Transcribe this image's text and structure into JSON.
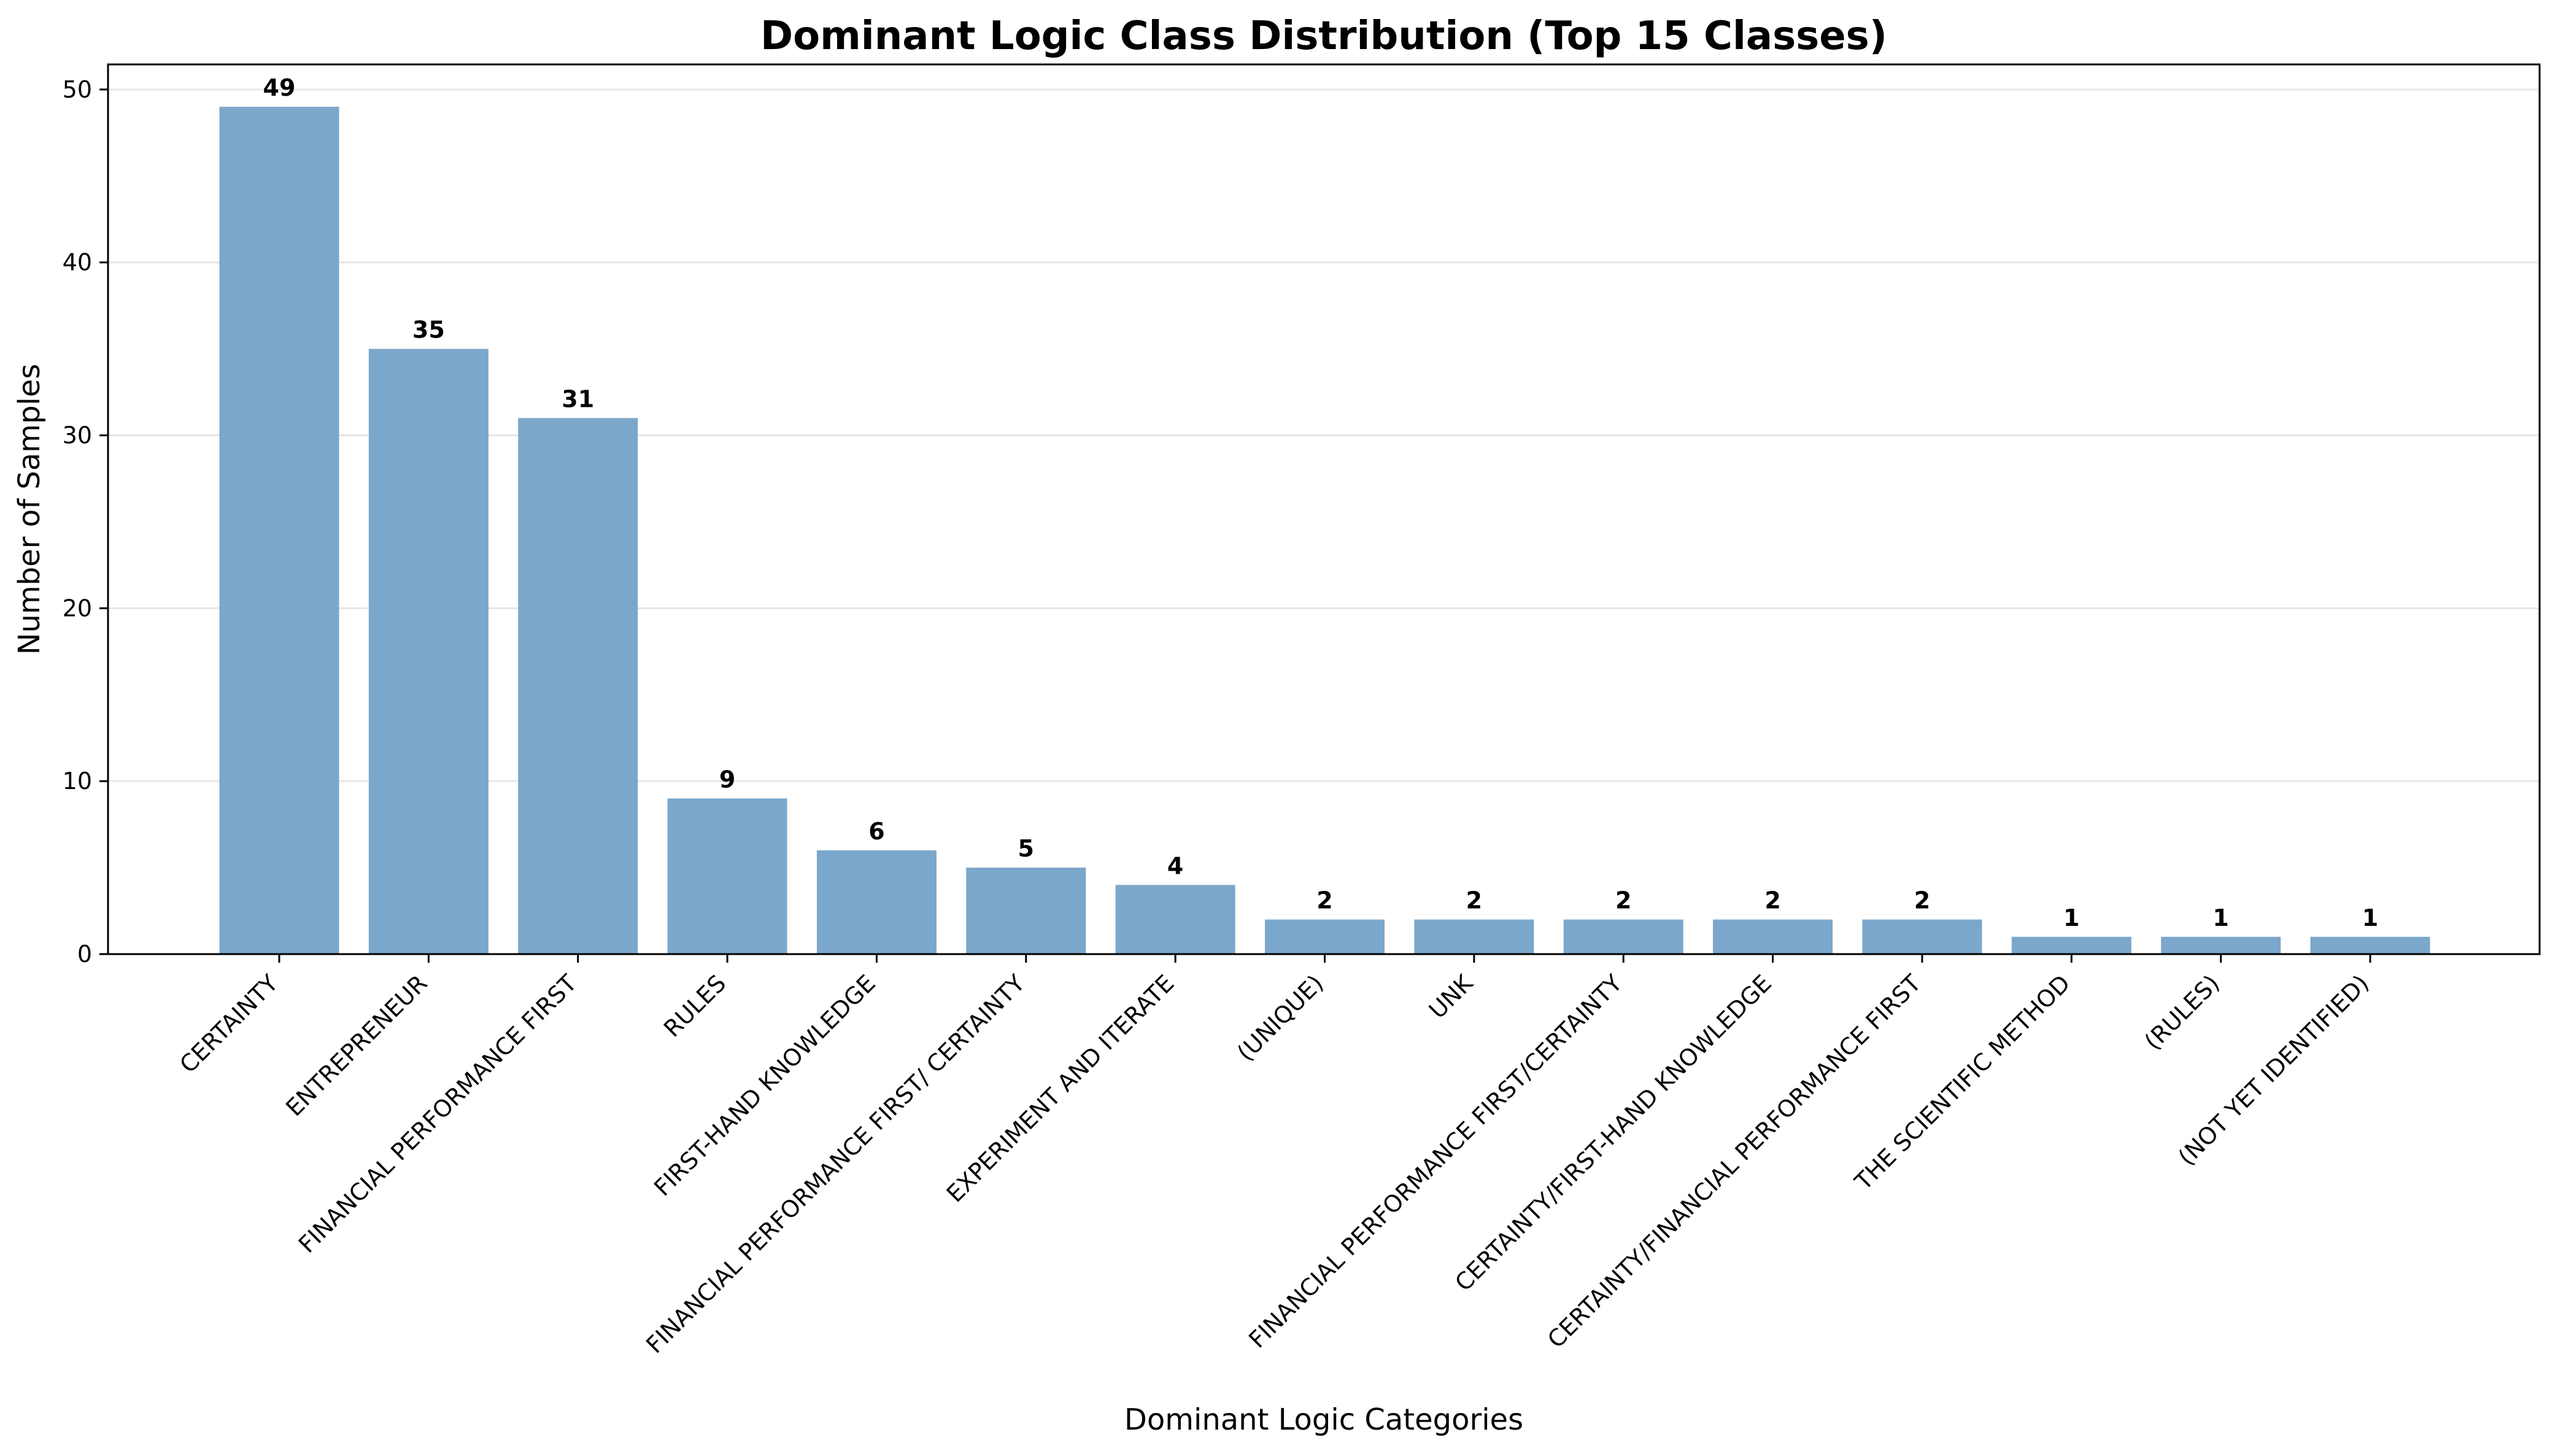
{
  "chart_data": {
    "type": "bar",
    "title": "Dominant Logic Class Distribution (Top 15 Classes)",
    "xlabel": "Dominant Logic Categories",
    "ylabel": "Number of Samples",
    "categories": [
      "CERTAINTY",
      "ENTREPRENEUR",
      "FINANCIAL PERFORMANCE FIRST",
      "RULES",
      "FIRST-HAND KNOWLEDGE",
      "FINANCIAL PERFORMANCE FIRST/ CERTAINTY",
      "EXPERIMENT AND ITERATE",
      "(UNIQUE)",
      "UNK",
      "FINANCIAL PERFORMANCE FIRST/CERTAINTY",
      "CERTAINTY/FIRST-HAND KNOWLEDGE",
      "CERTAINTY/FINANCIAL PERFORMANCE FIRST",
      "THE SCIENTIFIC METHOD",
      "(RULES)",
      "(NOT YET IDENTIFIED)"
    ],
    "values": [
      49,
      35,
      31,
      9,
      6,
      5,
      4,
      2,
      2,
      2,
      2,
      2,
      1,
      1,
      1
    ],
    "data_labels": [
      "49",
      "35",
      "31",
      "9",
      "6",
      "5",
      "4",
      "2",
      "2",
      "2",
      "2",
      "2",
      "1",
      "1",
      "1"
    ],
    "ylim": [
      0,
      51.45
    ],
    "yticks": [
      0,
      10,
      20,
      30,
      40,
      50
    ],
    "ytick_labels": [
      "0",
      "10",
      "20",
      "30",
      "40",
      "50"
    ],
    "grid": "horizontal",
    "legend": "none",
    "colors": {
      "bar": "#7ba7cb",
      "grid": "#e6e6e6",
      "axis": "#000000",
      "text": "#000000"
    }
  }
}
